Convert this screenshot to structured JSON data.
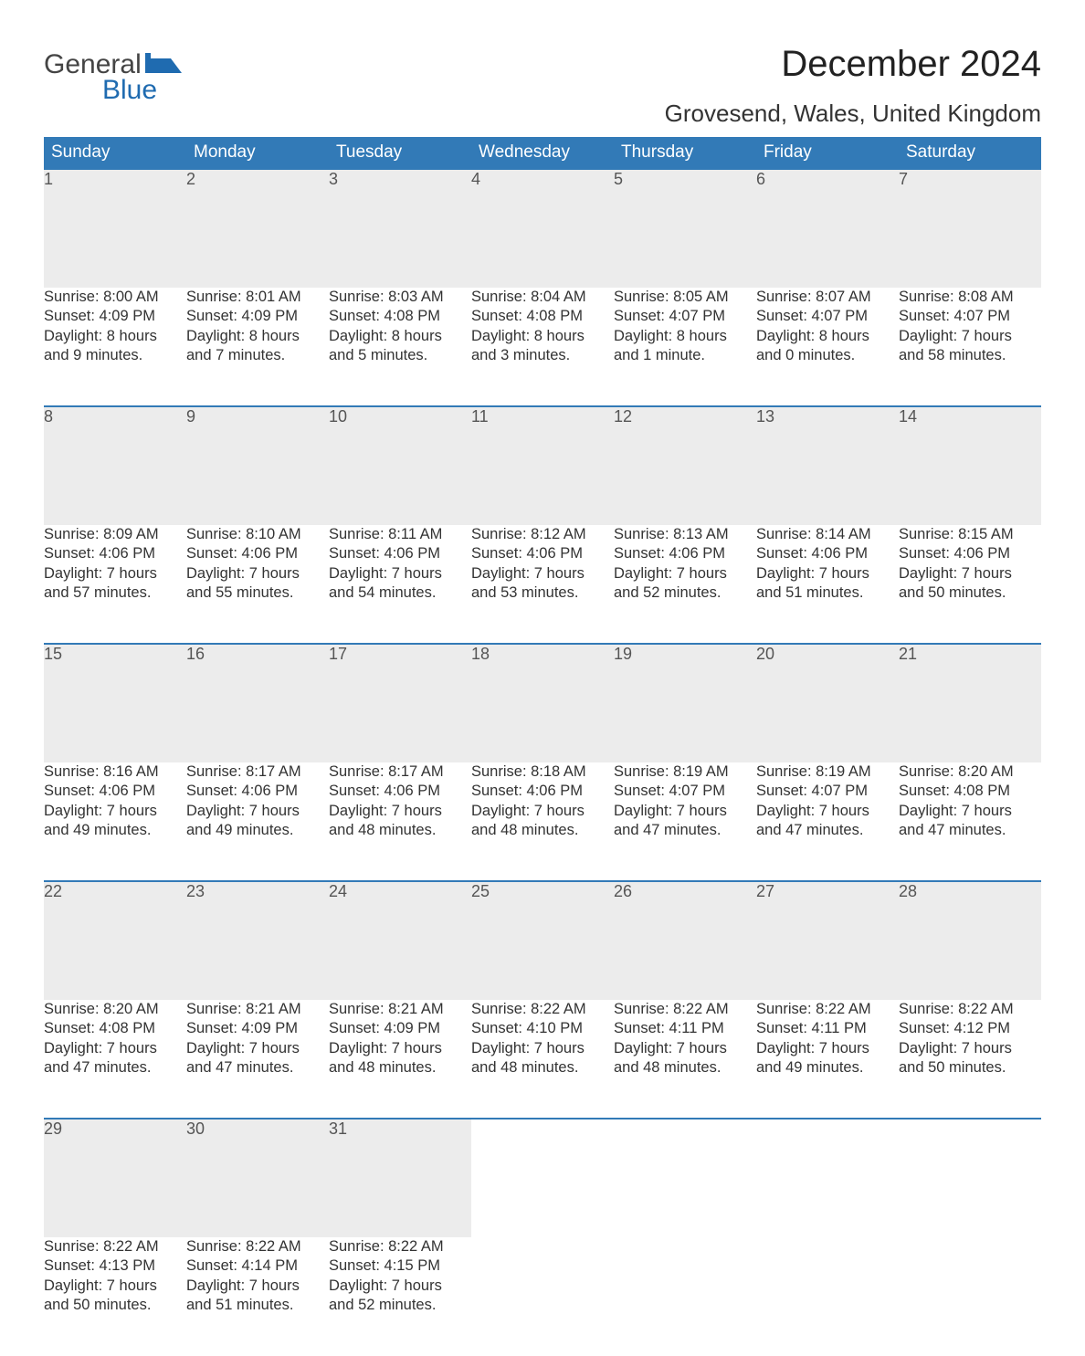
{
  "logo": {
    "text1": "General",
    "text2": "Blue",
    "flag_color": "#1f6bb0",
    "text1_color": "#444444"
  },
  "title": "December 2024",
  "location": "Grovesend, Wales, United Kingdom",
  "colors": {
    "header_bg": "#327ab7",
    "header_text": "#ffffff",
    "daynum_bg": "#ececec",
    "daynum_text": "#555555",
    "body_text": "#333333",
    "row_border": "#327ab7",
    "page_bg": "#ffffff"
  },
  "typography": {
    "title_fontsize": 40,
    "location_fontsize": 26,
    "weekday_fontsize": 19,
    "daynum_fontsize": 18,
    "cell_fontsize": 16.5
  },
  "weekdays": [
    "Sunday",
    "Monday",
    "Tuesday",
    "Wednesday",
    "Thursday",
    "Friday",
    "Saturday"
  ],
  "weeks": [
    [
      {
        "n": "1",
        "sr": "Sunrise: 8:00 AM",
        "ss": "Sunset: 4:09 PM",
        "d1": "Daylight: 8 hours",
        "d2": "and 9 minutes."
      },
      {
        "n": "2",
        "sr": "Sunrise: 8:01 AM",
        "ss": "Sunset: 4:09 PM",
        "d1": "Daylight: 8 hours",
        "d2": "and 7 minutes."
      },
      {
        "n": "3",
        "sr": "Sunrise: 8:03 AM",
        "ss": "Sunset: 4:08 PM",
        "d1": "Daylight: 8 hours",
        "d2": "and 5 minutes."
      },
      {
        "n": "4",
        "sr": "Sunrise: 8:04 AM",
        "ss": "Sunset: 4:08 PM",
        "d1": "Daylight: 8 hours",
        "d2": "and 3 minutes."
      },
      {
        "n": "5",
        "sr": "Sunrise: 8:05 AM",
        "ss": "Sunset: 4:07 PM",
        "d1": "Daylight: 8 hours",
        "d2": "and 1 minute."
      },
      {
        "n": "6",
        "sr": "Sunrise: 8:07 AM",
        "ss": "Sunset: 4:07 PM",
        "d1": "Daylight: 8 hours",
        "d2": "and 0 minutes."
      },
      {
        "n": "7",
        "sr": "Sunrise: 8:08 AM",
        "ss": "Sunset: 4:07 PM",
        "d1": "Daylight: 7 hours",
        "d2": "and 58 minutes."
      }
    ],
    [
      {
        "n": "8",
        "sr": "Sunrise: 8:09 AM",
        "ss": "Sunset: 4:06 PM",
        "d1": "Daylight: 7 hours",
        "d2": "and 57 minutes."
      },
      {
        "n": "9",
        "sr": "Sunrise: 8:10 AM",
        "ss": "Sunset: 4:06 PM",
        "d1": "Daylight: 7 hours",
        "d2": "and 55 minutes."
      },
      {
        "n": "10",
        "sr": "Sunrise: 8:11 AM",
        "ss": "Sunset: 4:06 PM",
        "d1": "Daylight: 7 hours",
        "d2": "and 54 minutes."
      },
      {
        "n": "11",
        "sr": "Sunrise: 8:12 AM",
        "ss": "Sunset: 4:06 PM",
        "d1": "Daylight: 7 hours",
        "d2": "and 53 minutes."
      },
      {
        "n": "12",
        "sr": "Sunrise: 8:13 AM",
        "ss": "Sunset: 4:06 PM",
        "d1": "Daylight: 7 hours",
        "d2": "and 52 minutes."
      },
      {
        "n": "13",
        "sr": "Sunrise: 8:14 AM",
        "ss": "Sunset: 4:06 PM",
        "d1": "Daylight: 7 hours",
        "d2": "and 51 minutes."
      },
      {
        "n": "14",
        "sr": "Sunrise: 8:15 AM",
        "ss": "Sunset: 4:06 PM",
        "d1": "Daylight: 7 hours",
        "d2": "and 50 minutes."
      }
    ],
    [
      {
        "n": "15",
        "sr": "Sunrise: 8:16 AM",
        "ss": "Sunset: 4:06 PM",
        "d1": "Daylight: 7 hours",
        "d2": "and 49 minutes."
      },
      {
        "n": "16",
        "sr": "Sunrise: 8:17 AM",
        "ss": "Sunset: 4:06 PM",
        "d1": "Daylight: 7 hours",
        "d2": "and 49 minutes."
      },
      {
        "n": "17",
        "sr": "Sunrise: 8:17 AM",
        "ss": "Sunset: 4:06 PM",
        "d1": "Daylight: 7 hours",
        "d2": "and 48 minutes."
      },
      {
        "n": "18",
        "sr": "Sunrise: 8:18 AM",
        "ss": "Sunset: 4:06 PM",
        "d1": "Daylight: 7 hours",
        "d2": "and 48 minutes."
      },
      {
        "n": "19",
        "sr": "Sunrise: 8:19 AM",
        "ss": "Sunset: 4:07 PM",
        "d1": "Daylight: 7 hours",
        "d2": "and 47 minutes."
      },
      {
        "n": "20",
        "sr": "Sunrise: 8:19 AM",
        "ss": "Sunset: 4:07 PM",
        "d1": "Daylight: 7 hours",
        "d2": "and 47 minutes."
      },
      {
        "n": "21",
        "sr": "Sunrise: 8:20 AM",
        "ss": "Sunset: 4:08 PM",
        "d1": "Daylight: 7 hours",
        "d2": "and 47 minutes."
      }
    ],
    [
      {
        "n": "22",
        "sr": "Sunrise: 8:20 AM",
        "ss": "Sunset: 4:08 PM",
        "d1": "Daylight: 7 hours",
        "d2": "and 47 minutes."
      },
      {
        "n": "23",
        "sr": "Sunrise: 8:21 AM",
        "ss": "Sunset: 4:09 PM",
        "d1": "Daylight: 7 hours",
        "d2": "and 47 minutes."
      },
      {
        "n": "24",
        "sr": "Sunrise: 8:21 AM",
        "ss": "Sunset: 4:09 PM",
        "d1": "Daylight: 7 hours",
        "d2": "and 48 minutes."
      },
      {
        "n": "25",
        "sr": "Sunrise: 8:22 AM",
        "ss": "Sunset: 4:10 PM",
        "d1": "Daylight: 7 hours",
        "d2": "and 48 minutes."
      },
      {
        "n": "26",
        "sr": "Sunrise: 8:22 AM",
        "ss": "Sunset: 4:11 PM",
        "d1": "Daylight: 7 hours",
        "d2": "and 48 minutes."
      },
      {
        "n": "27",
        "sr": "Sunrise: 8:22 AM",
        "ss": "Sunset: 4:11 PM",
        "d1": "Daylight: 7 hours",
        "d2": "and 49 minutes."
      },
      {
        "n": "28",
        "sr": "Sunrise: 8:22 AM",
        "ss": "Sunset: 4:12 PM",
        "d1": "Daylight: 7 hours",
        "d2": "and 50 minutes."
      }
    ],
    [
      {
        "n": "29",
        "sr": "Sunrise: 8:22 AM",
        "ss": "Sunset: 4:13 PM",
        "d1": "Daylight: 7 hours",
        "d2": "and 50 minutes."
      },
      {
        "n": "30",
        "sr": "Sunrise: 8:22 AM",
        "ss": "Sunset: 4:14 PM",
        "d1": "Daylight: 7 hours",
        "d2": "and 51 minutes."
      },
      {
        "n": "31",
        "sr": "Sunrise: 8:22 AM",
        "ss": "Sunset: 4:15 PM",
        "d1": "Daylight: 7 hours",
        "d2": "and 52 minutes."
      },
      null,
      null,
      null,
      null
    ]
  ]
}
